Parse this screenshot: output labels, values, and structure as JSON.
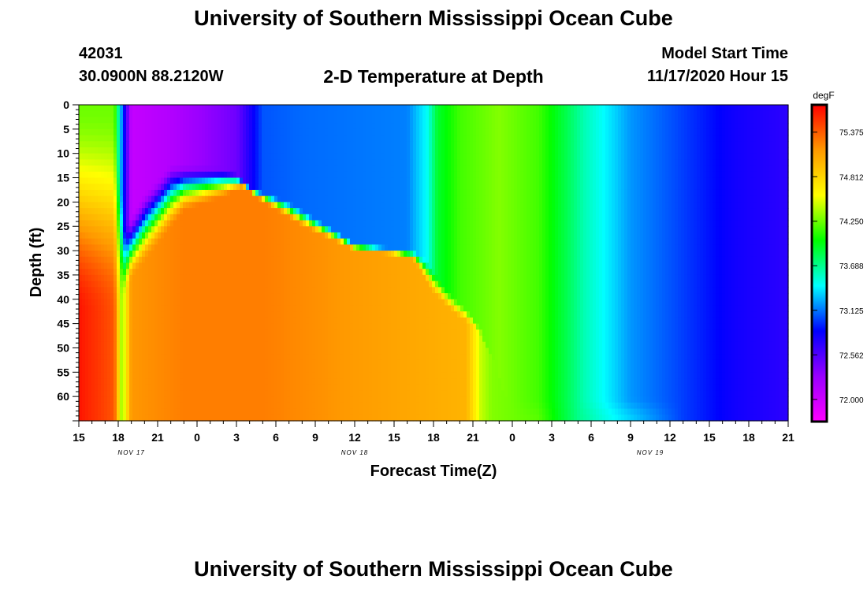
{
  "header": {
    "title": "University of Southern Mississippi Ocean Cube",
    "station_id": "42031",
    "coords": "30.0900N 88.2120W",
    "model_start_label": "Model Start Time",
    "model_start_time": "11/17/2020 Hour 15"
  },
  "footer": {
    "title": "University of Southern Mississippi Ocean Cube"
  },
  "chart_data": {
    "type": "heatmap",
    "title": "2-D Temperature at Depth",
    "xlabel": "Forecast Time(Z)",
    "ylabel": "Depth (ft)",
    "x_ticks": [
      "15",
      "18",
      "21",
      "0",
      "3",
      "6",
      "9",
      "12",
      "15",
      "18",
      "21",
      "0",
      "3",
      "6",
      "9",
      "12",
      "15",
      "18",
      "21"
    ],
    "x_range_hours": [
      0,
      54
    ],
    "date_labels": [
      {
        "text": "NOV 17",
        "hour": 4
      },
      {
        "text": "NOV 18",
        "hour": 21
      },
      {
        "text": "NOV 19",
        "hour": 43.5
      }
    ],
    "y_ticks": [
      0,
      5,
      10,
      15,
      20,
      25,
      30,
      35,
      40,
      45,
      50,
      55,
      60
    ],
    "ylim": [
      0,
      65
    ],
    "units": "degF",
    "colorbar_ticks": [
      "75.375",
      "74.812",
      "74.250",
      "73.688",
      "73.125",
      "72.562",
      "72.000"
    ],
    "colorbar_range": [
      71.72,
      75.72
    ],
    "colors": {
      "ramp": [
        "#ff00ff",
        "#9900ff",
        "#0000ff",
        "#00ffff",
        "#00ff00",
        "#ffff00",
        "#ff9900",
        "#ff0000"
      ]
    },
    "surface_profile": [
      {
        "h": 0,
        "t": 74.25
      },
      {
        "h": 2.7,
        "t": 74.25
      },
      {
        "h": 3.3,
        "t": 73.1
      },
      {
        "h": 4,
        "t": 72.05
      },
      {
        "h": 7,
        "t": 72.15
      },
      {
        "h": 12,
        "t": 72.45
      },
      {
        "h": 14,
        "t": 73.05
      },
      {
        "h": 17,
        "t": 73.1
      },
      {
        "h": 25,
        "t": 73.15
      },
      {
        "h": 26.5,
        "t": 73.45
      },
      {
        "h": 27.3,
        "t": 73.9
      },
      {
        "h": 29,
        "t": 74.15
      },
      {
        "h": 32,
        "t": 74.3
      },
      {
        "h": 35,
        "t": 74.15
      },
      {
        "h": 37,
        "t": 73.85
      },
      {
        "h": 38.5,
        "t": 73.6
      },
      {
        "h": 42,
        "t": 73.2
      },
      {
        "h": 46,
        "t": 73.0
      },
      {
        "h": 50,
        "t": 72.8
      },
      {
        "h": 54,
        "t": 72.7
      }
    ],
    "deep_profile": [
      {
        "h": 0,
        "t": 75.65
      },
      {
        "h": 2.7,
        "t": 75.4
      },
      {
        "h": 3.3,
        "t": 74.3
      },
      {
        "h": 4,
        "t": 75.15
      },
      {
        "h": 8,
        "t": 75.25
      },
      {
        "h": 14,
        "t": 75.25
      },
      {
        "h": 20,
        "t": 75.15
      },
      {
        "h": 29.5,
        "t": 75.0
      },
      {
        "h": 30,
        "t": 74.75
      },
      {
        "h": 30.6,
        "t": 74.45
      },
      {
        "h": 31.4,
        "t": 74.3
      },
      {
        "h": 35,
        "t": 74.2
      },
      {
        "h": 38,
        "t": 73.7
      },
      {
        "h": 40,
        "t": 73.5
      },
      {
        "h": 46,
        "t": 73.0
      },
      {
        "h": 50,
        "t": 72.8
      },
      {
        "h": 54,
        "t": 72.7
      }
    ],
    "mixed_layer_depth_ft": [
      {
        "h": 0,
        "d": 0
      },
      {
        "h": 2.7,
        "d": 0
      },
      {
        "h": 3.5,
        "d": 25
      },
      {
        "h": 5,
        "d": 18
      },
      {
        "h": 7,
        "d": 12
      },
      {
        "h": 11,
        "d": 13
      },
      {
        "h": 12,
        "d": 14
      },
      {
        "h": 13,
        "d": 17
      },
      {
        "h": 16,
        "d": 20
      },
      {
        "h": 19,
        "d": 25
      },
      {
        "h": 21,
        "d": 28.5
      },
      {
        "h": 24,
        "d": 29.5
      },
      {
        "h": 25.5,
        "d": 30
      },
      {
        "h": 26.5,
        "d": 32
      },
      {
        "h": 28,
        "d": 38
      },
      {
        "h": 29.5,
        "d": 42
      },
      {
        "h": 30.5,
        "d": 46
      },
      {
        "h": 31.5,
        "d": 52
      },
      {
        "h": 32.5,
        "d": 60
      },
      {
        "h": 54,
        "d": 60
      }
    ],
    "warm_top_depth_ft": [
      {
        "h": 0,
        "d": 43
      },
      {
        "h": 3,
        "d": 43
      },
      {
        "h": 4,
        "d": 36
      },
      {
        "h": 8,
        "d": 22
      },
      {
        "h": 11,
        "d": 19
      },
      {
        "h": 12.5,
        "d": 17
      },
      {
        "h": 14,
        "d": 20
      },
      {
        "h": 17,
        "d": 25
      },
      {
        "h": 21,
        "d": 30
      },
      {
        "h": 24,
        "d": 31
      },
      {
        "h": 25.5,
        "d": 32
      },
      {
        "h": 27,
        "d": 39
      },
      {
        "h": 29,
        "d": 44
      },
      {
        "h": 31,
        "d": 47
      },
      {
        "h": 32,
        "d": 50
      },
      {
        "h": 33,
        "d": 65
      },
      {
        "h": 54,
        "d": 65
      }
    ]
  }
}
